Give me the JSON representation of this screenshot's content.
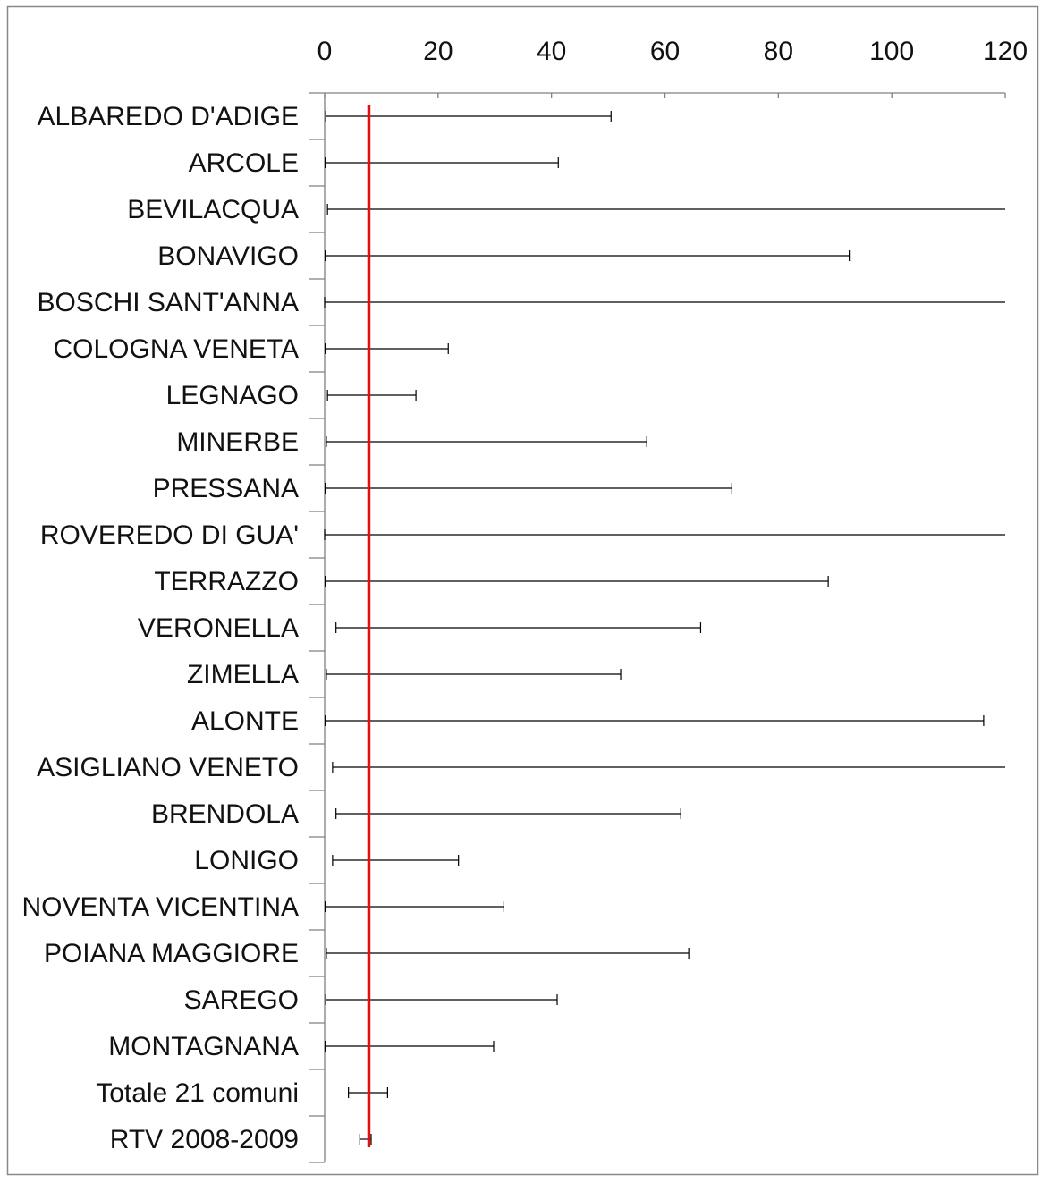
{
  "chart_data": {
    "type": "errorbar",
    "title": "",
    "xlabel": "",
    "ylabel": "",
    "xlim": [
      0,
      120
    ],
    "xticks": [
      0,
      20,
      40,
      60,
      80,
      100,
      120
    ],
    "x_axis_position": "top",
    "grid": false,
    "legend": "none",
    "reference_line": {
      "value": 7.8,
      "color": "#e01010"
    },
    "colors": {
      "interval": "#000000",
      "axis": "#808080",
      "reference": "#e01010"
    },
    "categories": [
      "ALBAREDO D'ADIGE",
      "ARCOLE",
      "BEVILACQUA",
      "BONAVIGO",
      "BOSCHI SANT'ANNA",
      "COLOGNA VENETA",
      "LEGNAGO",
      "MINERBE",
      "PRESSANA",
      "ROVEREDO DI GUA'",
      "TERRAZZO",
      "VERONELLA",
      "ZIMELLA",
      "ALONTE",
      "ASIGLIANO VENETO",
      "BRENDOLA",
      "LONIGO",
      "NOVENTA VICENTINA",
      "POIANA MAGGIORE",
      "SAREGO",
      "MONTAGNANA",
      "Totale 21 comuni",
      "RTV 2008-2009"
    ],
    "intervals": [
      {
        "low": 0.2,
        "high": 50.5
      },
      {
        "low": 0.1,
        "high": 41.2
      },
      {
        "low": 0.5,
        "high": 120,
        "open_end": true
      },
      {
        "low": 0.1,
        "high": 92.5
      },
      {
        "low": 0.0,
        "high": 120,
        "open_end": true
      },
      {
        "low": 0.1,
        "high": 21.8
      },
      {
        "low": 0.5,
        "high": 16.1
      },
      {
        "low": 0.3,
        "high": 56.8
      },
      {
        "low": 0.1,
        "high": 71.8
      },
      {
        "low": 0.0,
        "high": 120,
        "open_end": true
      },
      {
        "low": 0.1,
        "high": 88.8
      },
      {
        "low": 2.0,
        "high": 66.3
      },
      {
        "low": 0.3,
        "high": 52.2
      },
      {
        "low": 0.1,
        "high": 116.2
      },
      {
        "low": 1.4,
        "high": 120,
        "open_end": true
      },
      {
        "low": 2.0,
        "high": 62.8
      },
      {
        "low": 1.4,
        "high": 23.6
      },
      {
        "low": 0.1,
        "high": 31.6
      },
      {
        "low": 0.3,
        "high": 64.2
      },
      {
        "low": 0.2,
        "high": 41.0
      },
      {
        "low": 0.1,
        "high": 29.8
      },
      {
        "low": 4.2,
        "high": 11.1
      },
      {
        "low": 6.2,
        "high": 8.2
      }
    ]
  }
}
